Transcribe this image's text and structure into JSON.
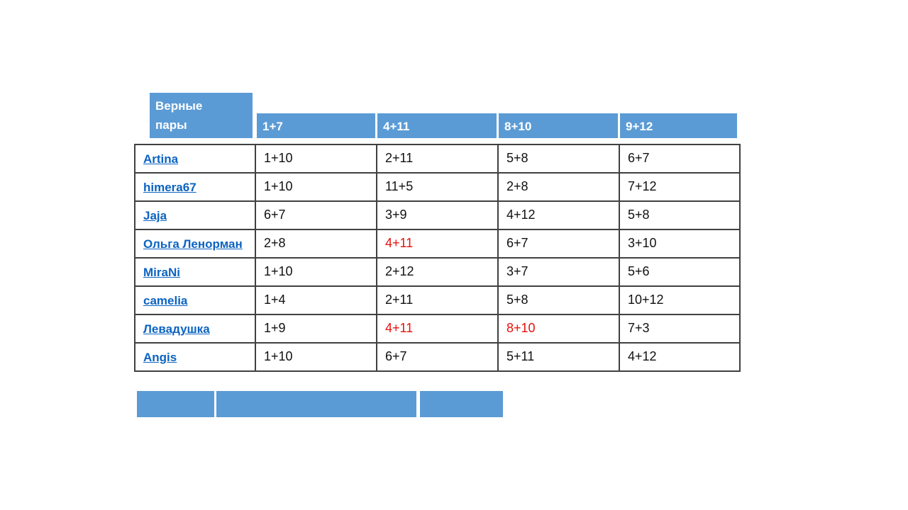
{
  "colors": {
    "header_blue": "#5b9bd5",
    "link_blue": "#0b63c1",
    "highlight_red": "#e8100c",
    "border_gray": "#404040"
  },
  "table": {
    "corner_header": {
      "line1": "Верные",
      "line2": "пары"
    },
    "column_headers": [
      "1+7",
      "4+11",
      "8+10",
      "9+12"
    ],
    "rows": [
      {
        "name": "Artina",
        "values": [
          {
            "text": "1+10",
            "red": false
          },
          {
            "text": "2+11",
            "red": false
          },
          {
            "text": "5+8",
            "red": false
          },
          {
            "text": "6+7",
            "red": false
          }
        ]
      },
      {
        "name": "himera67",
        "values": [
          {
            "text": "1+10",
            "red": false
          },
          {
            "text": "11+5",
            "red": false
          },
          {
            "text": "2+8",
            "red": false
          },
          {
            "text": "7+12",
            "red": false
          }
        ]
      },
      {
        "name": "Jaja",
        "values": [
          {
            "text": "6+7",
            "red": false
          },
          {
            "text": "3+9",
            "red": false
          },
          {
            "text": "4+12",
            "red": false
          },
          {
            "text": "5+8",
            "red": false
          }
        ]
      },
      {
        "name": "Ольга Ленорман",
        "values": [
          {
            "text": "2+8",
            "red": false
          },
          {
            "text": "4+11",
            "red": true
          },
          {
            "text": "6+7",
            "red": false
          },
          {
            "text": "3+10",
            "red": false
          }
        ]
      },
      {
        "name": "MiraNi",
        "values": [
          {
            "text": "1+10",
            "red": false
          },
          {
            "text": "2+12",
            "red": false
          },
          {
            "text": "3+7",
            "red": false
          },
          {
            "text": "5+6",
            "red": false
          }
        ]
      },
      {
        "name": "camelia",
        "values": [
          {
            "text": "1+4",
            "red": false
          },
          {
            "text": "2+11",
            "red": false
          },
          {
            "text": "5+8",
            "red": false
          },
          {
            "text": "10+12",
            "red": false
          }
        ]
      },
      {
        "name": "Левадушка",
        "values": [
          {
            "text": "1+9",
            "red": false
          },
          {
            "text": "4+11",
            "red": true
          },
          {
            "text": "8+10",
            "red": true
          },
          {
            "text": "7+3",
            "red": false
          }
        ]
      },
      {
        "name": "Angis",
        "values": [
          {
            "text": "1+10",
            "red": false
          },
          {
            "text": "6+7",
            "red": false
          },
          {
            "text": "5+11",
            "red": false
          },
          {
            "text": "4+12",
            "red": false
          }
        ]
      }
    ]
  },
  "footer": {
    "bar_count": 3
  }
}
